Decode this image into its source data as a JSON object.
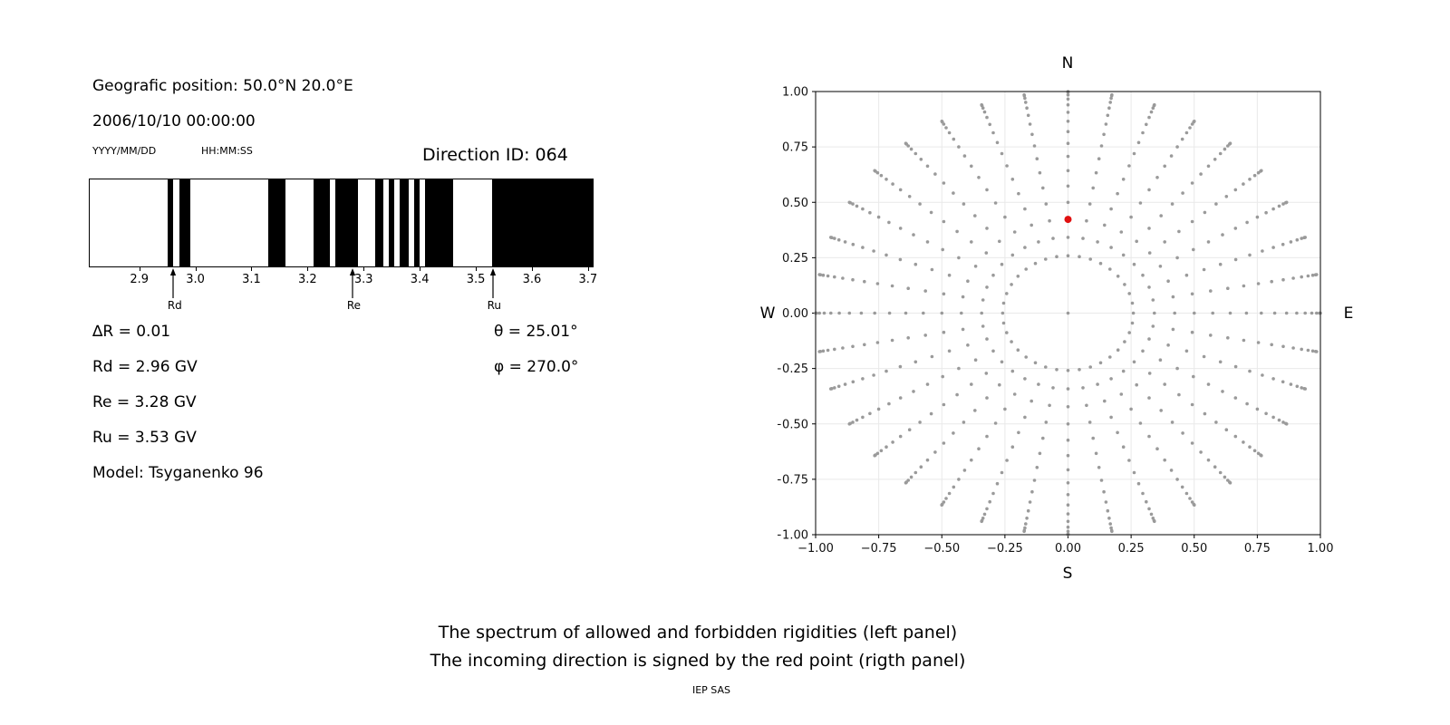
{
  "left_panel": {
    "position_label": "Geografic position: 50.0°N 20.0°E",
    "datetime": "2006/10/10 00:00:00",
    "date_format_label": "YYYY/MM/DD",
    "time_format_label": "HH:MM:SS",
    "direction_id": "Direction ID: 064",
    "delta_r": "∆R = 0.01",
    "rd": "Rd = 2.96 GV",
    "re": "Re = 3.28 GV",
    "ru": "Ru = 3.53 GV",
    "model": "Model: Tsyganenko 96",
    "theta": "θ = 25.01°",
    "phi": "φ = 270.0°"
  },
  "captions": {
    "line1": "The spectrum of allowed and forbidden rigidities (left panel)",
    "line2": "The incoming direction is signed by the red point (rigth panel)",
    "credit": "IEP SAS"
  },
  "chart_data": [
    {
      "type": "bar",
      "description": "Barcode spectrum: black bands are allowed rigidities, white gaps are forbidden",
      "x_unit": "GV",
      "x_range": [
        2.81,
        3.71
      ],
      "x_ticks": [
        {
          "v": 2.9,
          "label": "2.9"
        },
        {
          "v": 3.0,
          "label": "3.0"
        },
        {
          "v": 3.1,
          "label": "3.1"
        },
        {
          "v": 3.2,
          "label": "3.2"
        },
        {
          "v": 3.3,
          "label": "3.3"
        },
        {
          "v": 3.4,
          "label": "3.4"
        },
        {
          "v": 3.5,
          "label": "3.5"
        },
        {
          "v": 3.6,
          "label": "3.6"
        },
        {
          "v": 3.7,
          "label": "3.7"
        }
      ],
      "allowed_bands_gv": [
        [
          2.95,
          2.96
        ],
        [
          2.97,
          2.99
        ],
        [
          3.13,
          3.16
        ],
        [
          3.21,
          3.24
        ],
        [
          3.25,
          3.29
        ],
        [
          3.32,
          3.335
        ],
        [
          3.345,
          3.355
        ],
        [
          3.365,
          3.38
        ],
        [
          3.39,
          3.4
        ],
        [
          3.41,
          3.46
        ],
        [
          3.53,
          3.71
        ]
      ],
      "band_color": "#000000",
      "markers": [
        {
          "label": "Rd",
          "value_gv": 2.96
        },
        {
          "label": "Re",
          "value_gv": 3.28
        },
        {
          "label": "Ru",
          "value_gv": 3.53
        }
      ]
    },
    {
      "type": "scatter",
      "description": "Sky map of direction grid dots; red point marks the incoming direction",
      "xlim": [
        -1,
        1
      ],
      "ylim": [
        -1,
        1
      ],
      "grid": true,
      "grid_color": "#e9e9e9",
      "ticks": [
        {
          "v": -1.0,
          "label": "−1.00"
        },
        {
          "v": -0.75,
          "label": "−0.75"
        },
        {
          "v": -0.5,
          "label": "−0.50"
        },
        {
          "v": -0.25,
          "label": "−0.25"
        },
        {
          "v": 0.0,
          "label": "0.00"
        },
        {
          "v": 0.25,
          "label": "0.25"
        },
        {
          "v": 0.5,
          "label": "0.50"
        },
        {
          "v": 0.75,
          "label": "0.75"
        },
        {
          "v": 1.0,
          "label": "1.00"
        }
      ],
      "compass": {
        "n": "N",
        "s": "S",
        "w": "W",
        "e": "E"
      },
      "dot_grid": {
        "color": "#9a9a9a",
        "center_dot": true,
        "azimuth_start_deg": 0,
        "azimuth_step_deg": 10,
        "azimuth_count": 36,
        "zenith_min_deg": 15,
        "zenith_max_deg": 90,
        "zenith_step_deg": 5,
        "radius_rule": "sin(zenith)"
      },
      "red_point": {
        "x": 0.0,
        "y": 0.423,
        "color": "#e01010"
      }
    }
  ]
}
